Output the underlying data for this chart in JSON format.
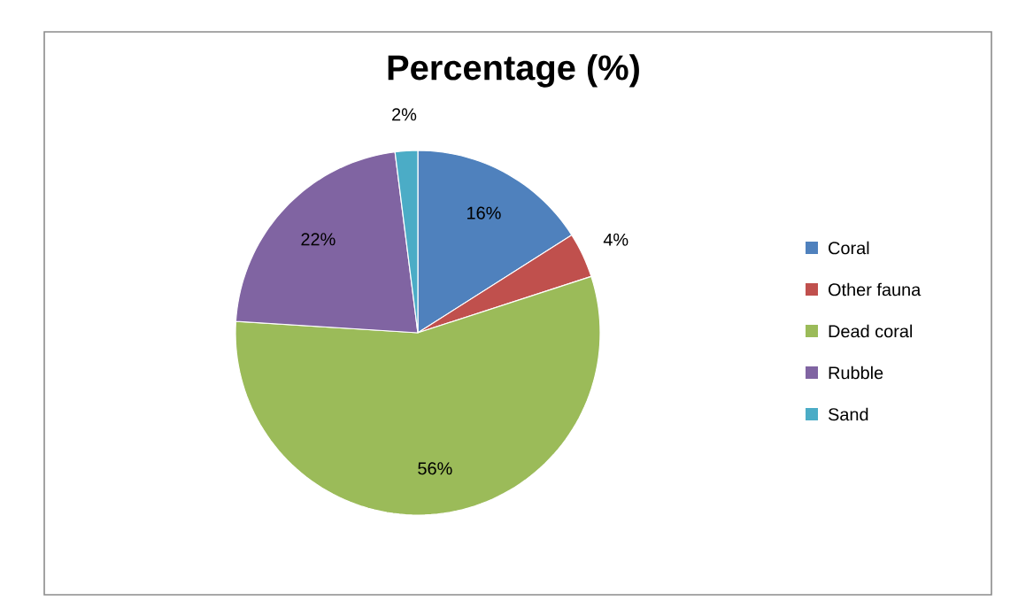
{
  "chart_data": {
    "type": "pie",
    "title": "Percentage (%)",
    "categories": [
      "Coral",
      "Other fauna",
      "Dead coral",
      "Rubble",
      "Sand"
    ],
    "values": [
      16,
      4,
      56,
      22,
      2
    ],
    "colors": [
      "#4f81bd",
      "#c0504d",
      "#9bbb59",
      "#8064a2",
      "#4bacc6"
    ],
    "value_labels": [
      "16%",
      "4%",
      "56%",
      "22%",
      "2%"
    ],
    "legend": "right"
  }
}
